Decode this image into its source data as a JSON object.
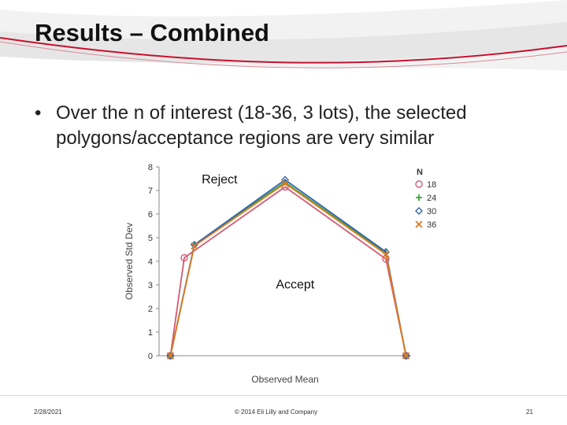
{
  "slide": {
    "title": "Results – Combined",
    "bullet": "Over the n of interest (18-36, 3 lots), the selected polygons/acceptance regions are very similar",
    "footer_date": "2/28/2021",
    "footer_copyright": "© 2014 Eli Lilly and Company",
    "page_number": "21"
  },
  "chart_data": {
    "type": "line",
    "title": "",
    "xlabel": "Observed Mean",
    "ylabel": "Observed Std Dev",
    "ylim": [
      0,
      8
    ],
    "xlim": [
      0,
      10
    ],
    "yticks": [
      "0",
      "1",
      "2",
      "3",
      "4",
      "5",
      "6",
      "7",
      "8"
    ],
    "grid": false,
    "legend_title": "N",
    "legend_position": "right",
    "annotations": [
      {
        "text": "Reject",
        "x": 2.4,
        "y": 7.3
      },
      {
        "text": "Accept",
        "x": 5.4,
        "y": 2.85
      }
    ],
    "series": [
      {
        "name": "18",
        "marker": "circle",
        "color": "#d45a73",
        "points": [
          [
            0.45,
            0
          ],
          [
            1.0,
            4.15
          ],
          [
            5.0,
            7.15
          ],
          [
            9.0,
            4.1
          ],
          [
            9.8,
            0
          ]
        ]
      },
      {
        "name": "24",
        "marker": "plus",
        "color": "#3aa635",
        "points": [
          [
            0.45,
            0
          ],
          [
            1.4,
            4.7
          ],
          [
            5.0,
            7.35
          ],
          [
            9.0,
            4.35
          ],
          [
            9.8,
            0
          ]
        ]
      },
      {
        "name": "30",
        "marker": "diamond",
        "color": "#2f64b3",
        "points": [
          [
            0.45,
            0
          ],
          [
            1.4,
            4.7
          ],
          [
            5.0,
            7.45
          ],
          [
            9.0,
            4.4
          ],
          [
            9.8,
            0
          ]
        ]
      },
      {
        "name": "36",
        "marker": "x",
        "color": "#e07b22",
        "points": [
          [
            0.45,
            0
          ],
          [
            1.4,
            4.65
          ],
          [
            5.0,
            7.3
          ],
          [
            9.0,
            4.3
          ],
          [
            9.8,
            0
          ]
        ]
      }
    ]
  }
}
